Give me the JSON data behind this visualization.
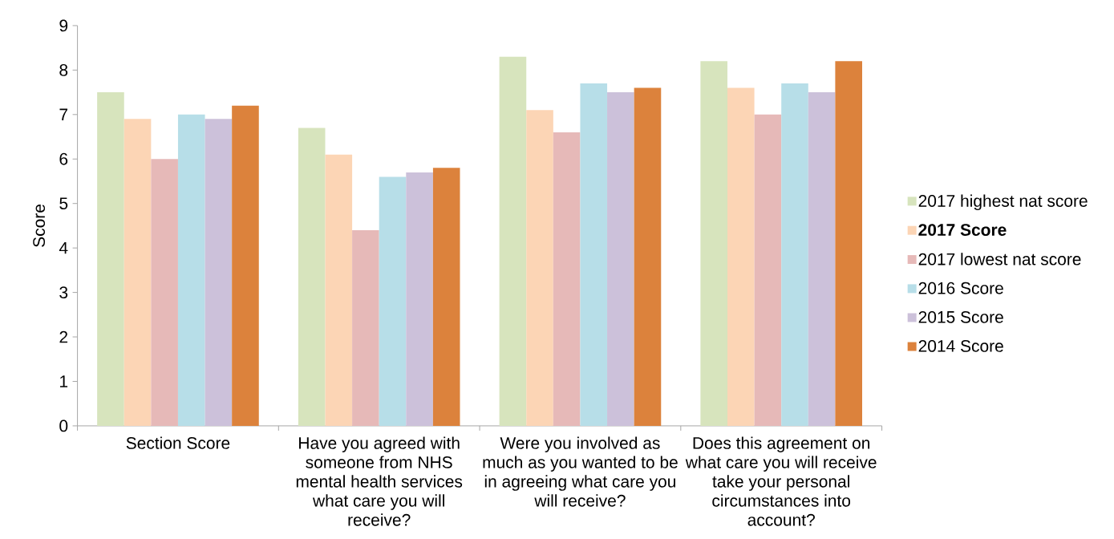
{
  "chart_data": {
    "type": "bar",
    "ylabel": "Score",
    "categories": [
      "Section Score",
      "Have you agreed with someone from NHS mental health services what care you will receive?",
      "Were you involved as much as you wanted to be in agreeing what care you will receive?",
      "Does this agreement on what care you will receive take your personal circumstances into account?"
    ],
    "series": [
      {
        "name": "2017 highest nat score",
        "color": "#d7e4bd",
        "values": [
          7.5,
          6.7,
          8.3,
          8.2
        ]
      },
      {
        "name": "**2017 Score**",
        "color": "#fcd5b5",
        "values": [
          6.9,
          6.1,
          7.1,
          7.6
        ]
      },
      {
        "name": "2017 lowest nat score",
        "color": "#e6b9b8",
        "values": [
          6.0,
          4.4,
          6.6,
          7.0
        ]
      },
      {
        "name": "2016 Score",
        "color": "#b7dee8",
        "values": [
          7.0,
          5.6,
          7.7,
          7.7
        ]
      },
      {
        "name": "2015 Score",
        "color": "#ccc1da",
        "values": [
          6.9,
          5.7,
          7.5,
          7.5
        ]
      },
      {
        "name": "2014 Score",
        "color": "#dc823c",
        "values": [
          7.2,
          5.8,
          7.6,
          8.2
        ]
      }
    ],
    "ylim": [
      0,
      9
    ],
    "yticks": [
      0,
      1,
      2,
      3,
      4,
      5,
      6,
      7,
      8,
      9
    ],
    "legend": "right"
  }
}
